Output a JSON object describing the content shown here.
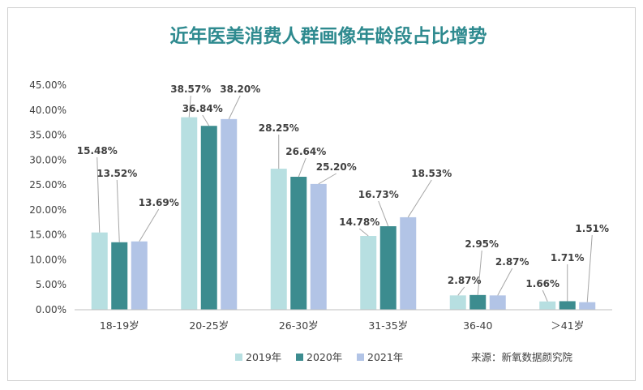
{
  "chart_data": {
    "type": "bar",
    "title": "近年医美消费人群画像年龄段占比增势",
    "categories": [
      "18-19岁",
      "20-25岁",
      "26-30岁",
      "31-35岁",
      "36-40",
      "＞41岁"
    ],
    "series": [
      {
        "name": "2019年",
        "color": "#b7dfe1",
        "values": [
          15.48,
          38.57,
          28.25,
          14.78,
          2.87,
          1.66
        ]
      },
      {
        "name": "2020年",
        "color": "#3c8c8f",
        "values": [
          13.52,
          36.84,
          26.64,
          16.73,
          2.95,
          1.71
        ]
      },
      {
        "name": "2021年",
        "color": "#b2c4e6",
        "values": [
          13.69,
          38.2,
          25.2,
          18.53,
          2.87,
          1.51
        ]
      }
    ],
    "data_labels": [
      [
        "15.48%",
        "38.57%",
        "28.25%",
        "14.78%",
        "2.87%",
        "1.66%"
      ],
      [
        "13.52%",
        "36.84%",
        "26.64%",
        "16.73%",
        "2.95%",
        "1.71%"
      ],
      [
        "13.69%",
        "38.20%",
        "25.20%",
        "18.53%",
        "2.87%",
        "1.51%"
      ]
    ],
    "y_ticks": [
      "0.00%",
      "5.00%",
      "10.00%",
      "15.00%",
      "20.00%",
      "25.00%",
      "30.00%",
      "35.00%",
      "40.00%",
      "45.00%"
    ],
    "ylim": [
      0,
      45
    ],
    "xlabel": "",
    "ylabel": "",
    "grid": false,
    "legend_position": "bottom",
    "source": "来源：新氧数据颜究院"
  }
}
